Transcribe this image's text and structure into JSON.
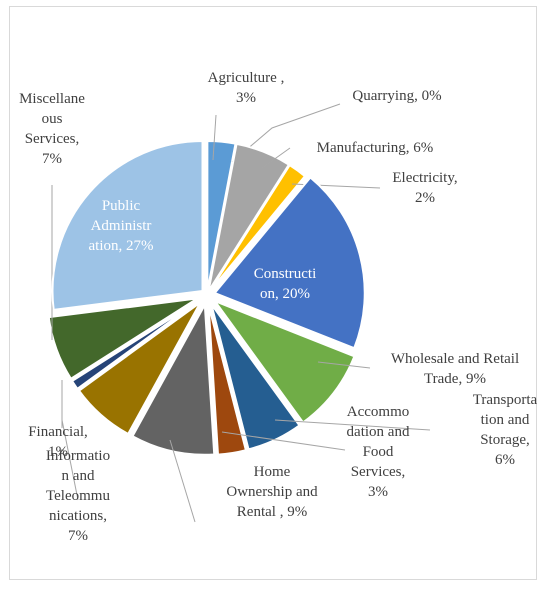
{
  "chart_data": {
    "type": "pie",
    "title": "",
    "slices": [
      {
        "name": "Agriculture",
        "value": 3,
        "label_lines": [
          "Agriculture ,",
          "3%"
        ],
        "color": "#5b9bd5"
      },
      {
        "name": "Quarrying",
        "value": 0,
        "label_lines": [
          "Quarrying, 0%"
        ],
        "color": "#ed7d31"
      },
      {
        "name": "Manufacturing",
        "value": 6,
        "label_lines": [
          "Manufacturing, 6%"
        ],
        "color": "#a5a5a5"
      },
      {
        "name": "Electricity",
        "value": 2,
        "label_lines": [
          "Electricity,",
          "2%"
        ],
        "color": "#ffc000"
      },
      {
        "name": "Construction",
        "value": 20,
        "label_lines": [
          "Constructi",
          "on, 20%"
        ],
        "color": "#4472c4"
      },
      {
        "name": "Wholesale and Retail Trade",
        "value": 9,
        "label_lines": [
          "Wholesale and Retail",
          "Trade, 9%"
        ],
        "color": "#70ad47"
      },
      {
        "name": "Transportation and Storage",
        "value": 6,
        "label_lines": [
          "Transporta",
          "tion and",
          "Storage,",
          "6%"
        ],
        "color": "#255e91"
      },
      {
        "name": "Accommodation and Food Services",
        "value": 3,
        "label_lines": [
          "Accommo",
          "dation and",
          "Food",
          "Services,",
          "3%"
        ],
        "color": "#9e480e"
      },
      {
        "name": "Home Ownership and Rental",
        "value": 9,
        "label_lines": [
          "Home",
          "Ownership and",
          "Rental , 9%"
        ],
        "color": "#636363"
      },
      {
        "name": "Information and Teleommunications",
        "value": 7,
        "label_lines": [
          "Informatio",
          "n and",
          "Teleommu",
          "nications,",
          "7%"
        ],
        "color": "#997300"
      },
      {
        "name": "Financial",
        "value": 1,
        "label_lines": [
          "Financial,",
          "1%"
        ],
        "color": "#264478"
      },
      {
        "name": "Miscellaneous Services",
        "value": 7,
        "label_lines": [
          "Miscellane",
          "ous",
          "Services,",
          "7%"
        ],
        "color": "#43682b"
      },
      {
        "name": "Public Administration",
        "value": 27,
        "label_lines": [
          "Public",
          "Administr",
          "ation, 27%"
        ],
        "color": "#9dc3e6"
      }
    ]
  }
}
